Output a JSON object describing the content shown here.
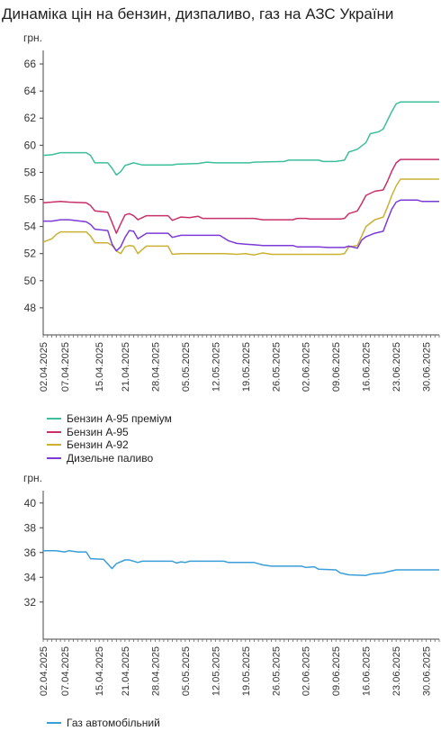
{
  "title": "Динаміка цін на бензин, дизпаливо, газ на АЗС України",
  "chart_data": [
    {
      "type": "line",
      "unit_label": "грн.",
      "ylim": [
        46,
        67
      ],
      "y_ticks": [
        48,
        50,
        52,
        54,
        56,
        58,
        60,
        62,
        64,
        66
      ],
      "x_range": [
        "2025-04-02",
        "2025-07-03"
      ],
      "x_tick_labels": [
        "02.04.2025",
        "07.04.2025",
        "15.04.2025",
        "21.04.2025",
        "28.04.2025",
        "05.05.2025",
        "12.05.2025",
        "19.05.2025",
        "26.05.2025",
        "02.06.2025",
        "09.06.2025",
        "16.06.2025",
        "23.06.2025",
        "30.06.2025"
      ],
      "grid": false,
      "legend_position": "bottom",
      "series": [
        {
          "name": "Бензин А-95 преміум",
          "color": "#3dbf9c",
          "points": [
            [
              "2025-04-02",
              59.25
            ],
            [
              "2025-04-04",
              59.3
            ],
            [
              "2025-04-06",
              59.45
            ],
            [
              "2025-04-12",
              59.45
            ],
            [
              "2025-04-13",
              59.25
            ],
            [
              "2025-04-14",
              58.7
            ],
            [
              "2025-04-17",
              58.7
            ],
            [
              "2025-04-18",
              58.3
            ],
            [
              "2025-04-19",
              57.8
            ],
            [
              "2025-04-20",
              58.05
            ],
            [
              "2025-04-21",
              58.5
            ],
            [
              "2025-04-23",
              58.7
            ],
            [
              "2025-04-25",
              58.55
            ],
            [
              "2025-05-02",
              58.55
            ],
            [
              "2025-05-03",
              58.6
            ],
            [
              "2025-05-08",
              58.65
            ],
            [
              "2025-05-10",
              58.75
            ],
            [
              "2025-05-12",
              58.7
            ],
            [
              "2025-05-20",
              58.7
            ],
            [
              "2025-05-21",
              58.75
            ],
            [
              "2025-05-28",
              58.8
            ],
            [
              "2025-05-29",
              58.9
            ],
            [
              "2025-06-05",
              58.9
            ],
            [
              "2025-06-06",
              58.8
            ],
            [
              "2025-06-09",
              58.8
            ],
            [
              "2025-06-11",
              58.9
            ],
            [
              "2025-06-12",
              59.5
            ],
            [
              "2025-06-14",
              59.7
            ],
            [
              "2025-06-16",
              60.2
            ],
            [
              "2025-06-17",
              60.85
            ],
            [
              "2025-06-19",
              61.0
            ],
            [
              "2025-06-20",
              61.2
            ],
            [
              "2025-06-21",
              61.85
            ],
            [
              "2025-06-22",
              62.5
            ],
            [
              "2025-06-23",
              63.05
            ],
            [
              "2025-06-24",
              63.2
            ],
            [
              "2025-07-03",
              63.2
            ]
          ]
        },
        {
          "name": "Бензин А-95",
          "color": "#c8306a",
          "points": [
            [
              "2025-04-02",
              55.75
            ],
            [
              "2025-04-04",
              55.8
            ],
            [
              "2025-04-06",
              55.85
            ],
            [
              "2025-04-08",
              55.8
            ],
            [
              "2025-04-12",
              55.75
            ],
            [
              "2025-04-13",
              55.55
            ],
            [
              "2025-04-14",
              55.15
            ],
            [
              "2025-04-17",
              55.05
            ],
            [
              "2025-04-18",
              54.3
            ],
            [
              "2025-04-19",
              53.5
            ],
            [
              "2025-04-20",
              54.2
            ],
            [
              "2025-04-21",
              54.85
            ],
            [
              "2025-04-22",
              54.95
            ],
            [
              "2025-04-23",
              54.8
            ],
            [
              "2025-04-24",
              54.5
            ],
            [
              "2025-04-26",
              54.8
            ],
            [
              "2025-05-01",
              54.8
            ],
            [
              "2025-05-02",
              54.45
            ],
            [
              "2025-05-04",
              54.7
            ],
            [
              "2025-05-06",
              54.65
            ],
            [
              "2025-05-08",
              54.75
            ],
            [
              "2025-05-09",
              54.6
            ],
            [
              "2025-05-21",
              54.6
            ],
            [
              "2025-05-23",
              54.5
            ],
            [
              "2025-05-30",
              54.5
            ],
            [
              "2025-05-31",
              54.6
            ],
            [
              "2025-06-02",
              54.6
            ],
            [
              "2025-06-03",
              54.55
            ],
            [
              "2025-06-10",
              54.55
            ],
            [
              "2025-06-11",
              54.6
            ],
            [
              "2025-06-12",
              54.95
            ],
            [
              "2025-06-14",
              55.15
            ],
            [
              "2025-06-15",
              55.7
            ],
            [
              "2025-06-16",
              56.3
            ],
            [
              "2025-06-18",
              56.6
            ],
            [
              "2025-06-20",
              56.7
            ],
            [
              "2025-06-21",
              57.35
            ],
            [
              "2025-06-22",
              58.1
            ],
            [
              "2025-06-23",
              58.7
            ],
            [
              "2025-06-24",
              58.95
            ],
            [
              "2025-07-03",
              58.95
            ]
          ]
        },
        {
          "name": "Бензин А-92",
          "color": "#c9b134",
          "points": [
            [
              "2025-04-02",
              52.85
            ],
            [
              "2025-04-04",
              53.1
            ],
            [
              "2025-04-05",
              53.4
            ],
            [
              "2025-04-06",
              53.6
            ],
            [
              "2025-04-12",
              53.6
            ],
            [
              "2025-04-13",
              53.3
            ],
            [
              "2025-04-14",
              52.8
            ],
            [
              "2025-04-17",
              52.8
            ],
            [
              "2025-04-18",
              52.6
            ],
            [
              "2025-04-19",
              52.2
            ],
            [
              "2025-04-20",
              52.0
            ],
            [
              "2025-04-21",
              52.5
            ],
            [
              "2025-04-22",
              52.6
            ],
            [
              "2025-04-23",
              52.55
            ],
            [
              "2025-04-24",
              52.0
            ],
            [
              "2025-04-25",
              52.3
            ],
            [
              "2025-04-26",
              52.55
            ],
            [
              "2025-05-01",
              52.55
            ],
            [
              "2025-05-02",
              51.95
            ],
            [
              "2025-05-04",
              52.0
            ],
            [
              "2025-05-14",
              52.0
            ],
            [
              "2025-05-17",
              51.95
            ],
            [
              "2025-05-19",
              52.0
            ],
            [
              "2025-05-21",
              51.9
            ],
            [
              "2025-05-23",
              52.05
            ],
            [
              "2025-05-25",
              51.95
            ],
            [
              "2025-06-10",
              51.95
            ],
            [
              "2025-06-11",
              52.0
            ],
            [
              "2025-06-12",
              52.5
            ],
            [
              "2025-06-14",
              52.6
            ],
            [
              "2025-06-15",
              53.3
            ],
            [
              "2025-06-16",
              54.0
            ],
            [
              "2025-06-18",
              54.5
            ],
            [
              "2025-06-20",
              54.7
            ],
            [
              "2025-06-21",
              55.45
            ],
            [
              "2025-06-22",
              56.3
            ],
            [
              "2025-06-23",
              57.0
            ],
            [
              "2025-06-24",
              57.5
            ],
            [
              "2025-07-03",
              57.5
            ]
          ]
        },
        {
          "name": "Дизельне паливо",
          "color": "#7c3ad6",
          "points": [
            [
              "2025-04-02",
              54.4
            ],
            [
              "2025-04-04",
              54.4
            ],
            [
              "2025-04-06",
              54.5
            ],
            [
              "2025-04-08",
              54.5
            ],
            [
              "2025-04-12",
              54.35
            ],
            [
              "2025-04-13",
              54.15
            ],
            [
              "2025-04-14",
              53.8
            ],
            [
              "2025-04-17",
              53.7
            ],
            [
              "2025-04-18",
              52.7
            ],
            [
              "2025-04-19",
              52.2
            ],
            [
              "2025-04-20",
              52.5
            ],
            [
              "2025-04-21",
              53.2
            ],
            [
              "2025-04-22",
              53.7
            ],
            [
              "2025-04-23",
              53.65
            ],
            [
              "2025-04-24",
              53.1
            ],
            [
              "2025-04-26",
              53.5
            ],
            [
              "2025-05-01",
              53.5
            ],
            [
              "2025-05-02",
              53.2
            ],
            [
              "2025-05-04",
              53.35
            ],
            [
              "2025-05-13",
              53.35
            ],
            [
              "2025-05-14",
              53.15
            ],
            [
              "2025-05-15",
              52.95
            ],
            [
              "2025-05-17",
              52.75
            ],
            [
              "2025-05-19",
              52.7
            ],
            [
              "2025-05-21",
              52.65
            ],
            [
              "2025-05-23",
              52.6
            ],
            [
              "2025-05-30",
              52.6
            ],
            [
              "2025-05-31",
              52.5
            ],
            [
              "2025-06-05",
              52.5
            ],
            [
              "2025-06-07",
              52.45
            ],
            [
              "2025-06-11",
              52.45
            ],
            [
              "2025-06-12",
              52.55
            ],
            [
              "2025-06-14",
              52.4
            ],
            [
              "2025-06-15",
              53.0
            ],
            [
              "2025-06-16",
              53.25
            ],
            [
              "2025-06-18",
              53.5
            ],
            [
              "2025-06-20",
              53.65
            ],
            [
              "2025-06-21",
              54.5
            ],
            [
              "2025-06-22",
              55.3
            ],
            [
              "2025-06-23",
              55.8
            ],
            [
              "2025-06-24",
              55.95
            ],
            [
              "2025-06-28",
              55.95
            ],
            [
              "2025-06-29",
              55.85
            ],
            [
              "2025-07-03",
              55.85
            ]
          ]
        }
      ]
    },
    {
      "type": "line",
      "unit_label": "грн.",
      "ylim": [
        29,
        41
      ],
      "y_ticks": [
        32,
        34,
        36,
        38,
        40
      ],
      "x_range": [
        "2025-04-02",
        "2025-07-03"
      ],
      "x_tick_labels": [
        "02.04.2025",
        "07.04.2025",
        "15.04.2025",
        "21.04.2025",
        "28.04.2025",
        "05.05.2025",
        "12.05.2025",
        "19.05.2025",
        "26.05.2025",
        "02.06.2025",
        "09.06.2025",
        "16.06.2025",
        "23.06.2025",
        "30.06.2025"
      ],
      "grid": false,
      "legend_position": "bottom",
      "series": [
        {
          "name": "Газ автомобільний",
          "color": "#3a9fd8",
          "points": [
            [
              "2025-04-02",
              36.15
            ],
            [
              "2025-04-05",
              36.15
            ],
            [
              "2025-04-07",
              36.05
            ],
            [
              "2025-04-08",
              36.15
            ],
            [
              "2025-04-10",
              36.05
            ],
            [
              "2025-04-12",
              36.05
            ],
            [
              "2025-04-13",
              35.5
            ],
            [
              "2025-04-16",
              35.45
            ],
            [
              "2025-04-18",
              34.7
            ],
            [
              "2025-04-19",
              35.1
            ],
            [
              "2025-04-21",
              35.4
            ],
            [
              "2025-04-22",
              35.4
            ],
            [
              "2025-04-24",
              35.2
            ],
            [
              "2025-04-25",
              35.3
            ],
            [
              "2025-05-02",
              35.3
            ],
            [
              "2025-05-03",
              35.15
            ],
            [
              "2025-05-04",
              35.25
            ],
            [
              "2025-05-05",
              35.2
            ],
            [
              "2025-05-06",
              35.3
            ],
            [
              "2025-05-14",
              35.3
            ],
            [
              "2025-05-15",
              35.2
            ],
            [
              "2025-05-21",
              35.2
            ],
            [
              "2025-05-23",
              35.0
            ],
            [
              "2025-05-25",
              34.9
            ],
            [
              "2025-06-01",
              34.9
            ],
            [
              "2025-06-02",
              34.8
            ],
            [
              "2025-06-04",
              34.85
            ],
            [
              "2025-06-05",
              34.65
            ],
            [
              "2025-06-09",
              34.6
            ],
            [
              "2025-06-10",
              34.35
            ],
            [
              "2025-06-12",
              34.2
            ],
            [
              "2025-06-16",
              34.15
            ],
            [
              "2025-06-17",
              34.25
            ],
            [
              "2025-06-18",
              34.3
            ],
            [
              "2025-06-20",
              34.35
            ],
            [
              "2025-06-21",
              34.45
            ],
            [
              "2025-06-23",
              34.6
            ],
            [
              "2025-07-03",
              34.6
            ]
          ]
        }
      ]
    }
  ]
}
